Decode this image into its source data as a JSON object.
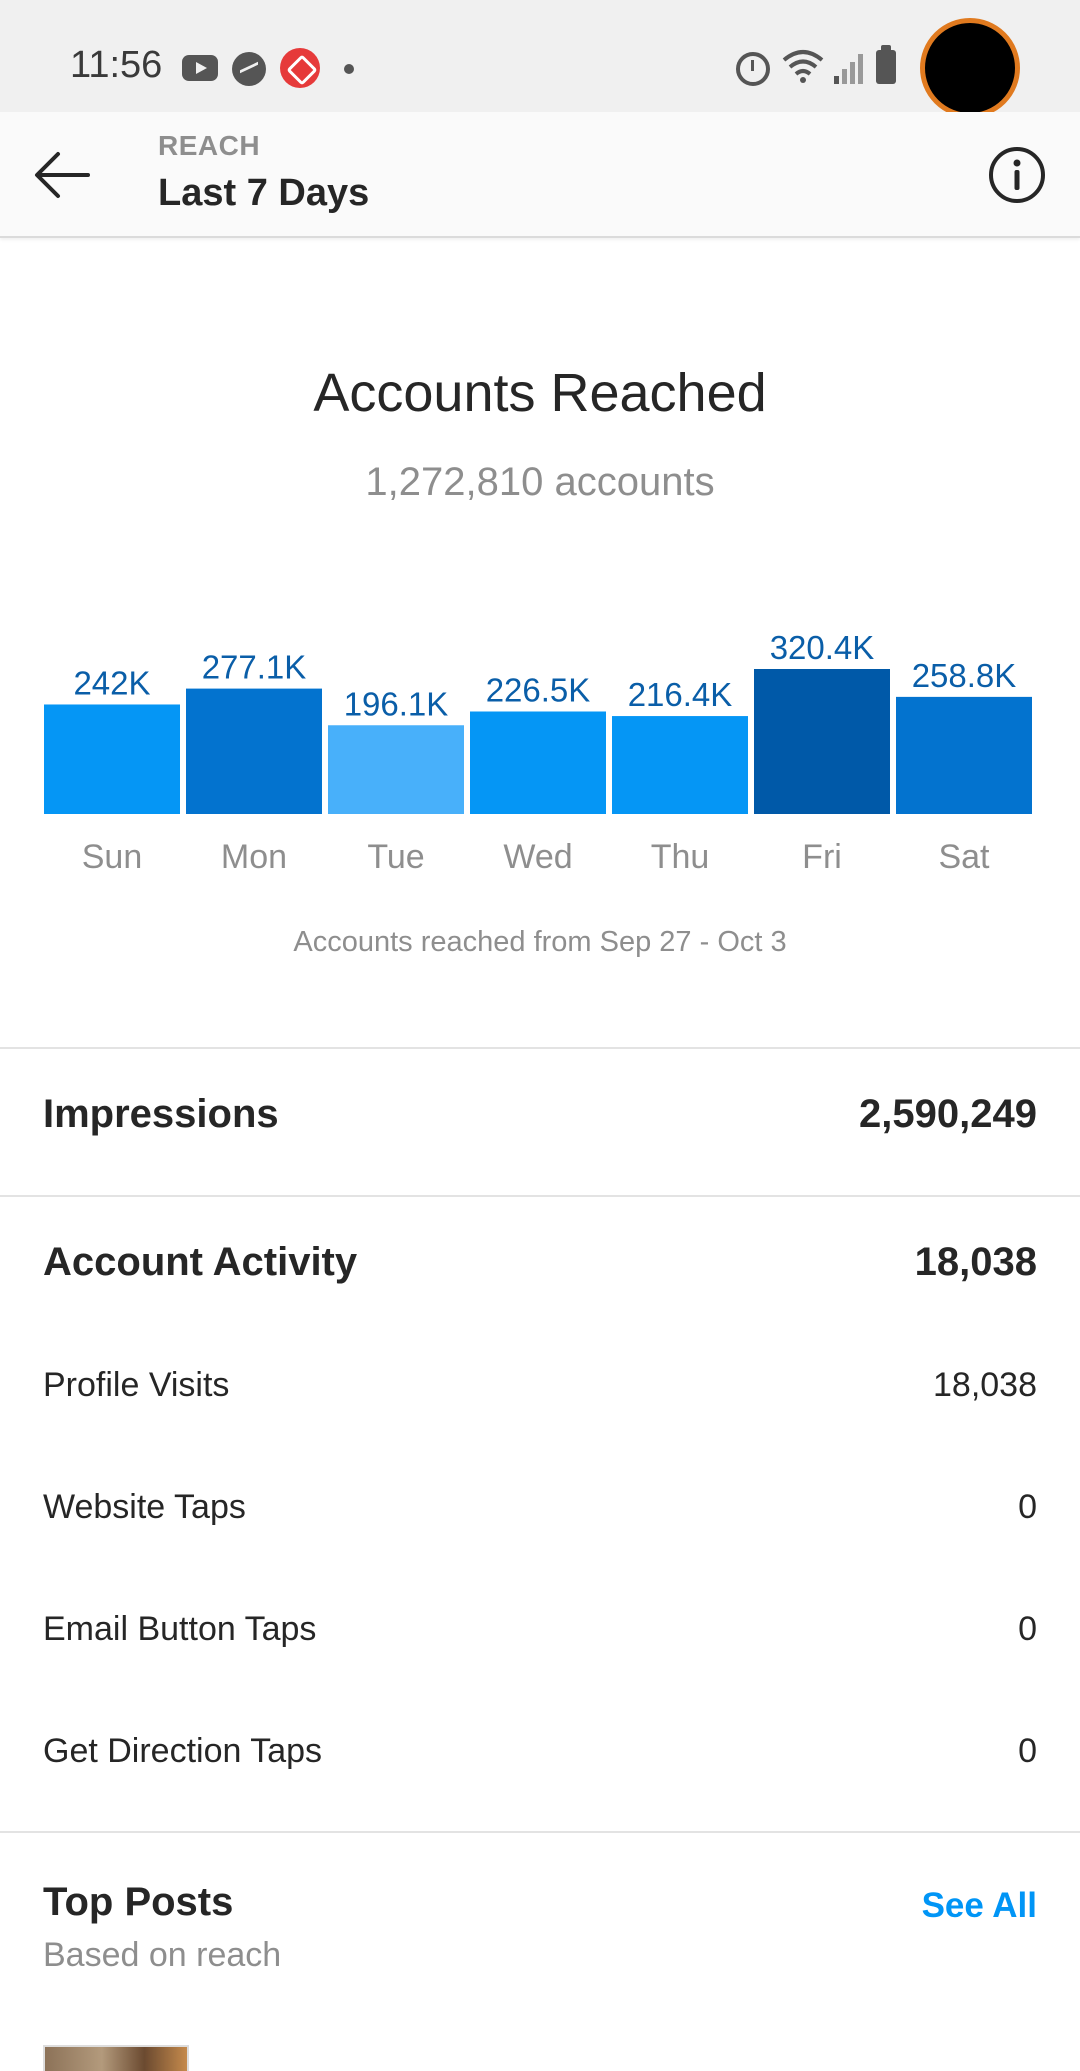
{
  "status_bar": {
    "time": "11:56",
    "icons": [
      "youtube-icon",
      "messenger-icon",
      "tag-icon",
      "dot-icon",
      "alarm-icon",
      "wifi-icon",
      "signal-icon",
      "battery-icon"
    ]
  },
  "header": {
    "kicker": "REACH",
    "title": "Last 7 Days",
    "back_icon": "arrow-left-icon",
    "info_icon": "info-icon"
  },
  "summary": {
    "title": "Accounts Reached",
    "subtitle": "1,272,810 accounts"
  },
  "chart_data": {
    "type": "bar",
    "categories": [
      "Sun",
      "Mon",
      "Tue",
      "Wed",
      "Thu",
      "Fri",
      "Sat"
    ],
    "values": [
      242000,
      277100,
      196100,
      226500,
      216400,
      320400,
      258800
    ],
    "value_labels": [
      "242K",
      "277.1K",
      "196.1K",
      "226.5K",
      "216.4K",
      "320.4K",
      "258.8K"
    ],
    "bar_colors": [
      "#0596f5",
      "#0373cf",
      "#48b0fa",
      "#0596f5",
      "#0596f5",
      "#0059a8",
      "#0373cf"
    ],
    "label_color": "#0a5ea8",
    "title": "",
    "xlabel": "",
    "ylabel": "",
    "grid": false,
    "caption": "Accounts reached from Sep 27 - Oct 3"
  },
  "impressions": {
    "label": "Impressions",
    "value": "2,590,249"
  },
  "account_activity": {
    "label": "Account Activity",
    "value": "18,038",
    "items": [
      {
        "label": "Profile Visits",
        "value": "18,038"
      },
      {
        "label": "Website Taps",
        "value": "0"
      },
      {
        "label": "Email Button Taps",
        "value": "0"
      },
      {
        "label": "Get Direction Taps",
        "value": "0"
      }
    ]
  },
  "top_posts": {
    "title": "Top Posts",
    "subtitle": "Based on reach",
    "see_all": "See All"
  },
  "colors": {
    "accent": "#0095f6",
    "camera_ring": "#e07a1f"
  }
}
